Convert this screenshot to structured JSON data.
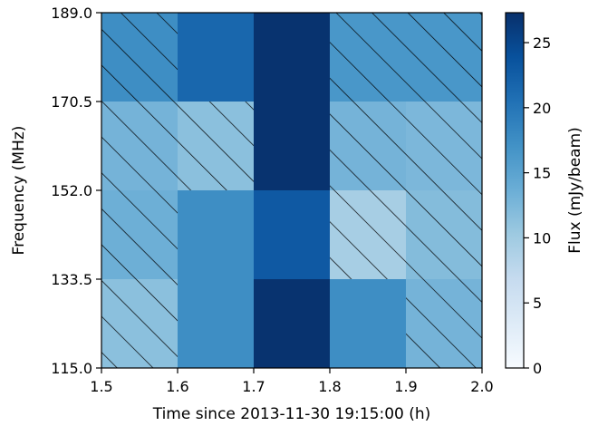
{
  "chart_data": {
    "type": "heatmap",
    "xlabel": "Time since 2013-11-30 19:15:00 (h)",
    "ylabel": "Frequency (MHz)",
    "colorbar_label": "Flux (mJy/beam)",
    "x_edges": [
      1.5,
      1.6,
      1.7,
      1.8,
      1.9,
      2.0
    ],
    "y_edges": [
      115.0,
      133.5,
      152.0,
      170.5,
      189.0
    ],
    "xlim": [
      1.5,
      2.0
    ],
    "ylim": [
      115.0,
      189.0
    ],
    "x_ticks": [
      "1.5",
      "1.6",
      "1.7",
      "1.8",
      "1.9",
      "2.0"
    ],
    "y_ticks": [
      "115.0",
      "133.5",
      "152.0",
      "170.5",
      "189.0"
    ],
    "colorbar_range": [
      0,
      27.3
    ],
    "colorbar_ticks": [
      "0",
      "5",
      "10",
      "15",
      "20",
      "25"
    ],
    "colormap": "Blues",
    "values": [
      [
        11.5,
        17.5,
        27.0,
        17.5,
        13.0
      ],
      [
        13.5,
        17.5,
        23.0,
        9.5,
        12.0
      ],
      [
        13.0,
        11.5,
        27.0,
        13.0,
        12.5
      ],
      [
        17.5,
        21.5,
        27.0,
        16.5,
        16.5
      ]
    ],
    "hatched": [
      [
        true,
        false,
        false,
        false,
        true
      ],
      [
        true,
        false,
        false,
        true,
        true
      ],
      [
        true,
        true,
        false,
        true,
        true
      ],
      [
        true,
        false,
        false,
        true,
        true
      ]
    ]
  }
}
